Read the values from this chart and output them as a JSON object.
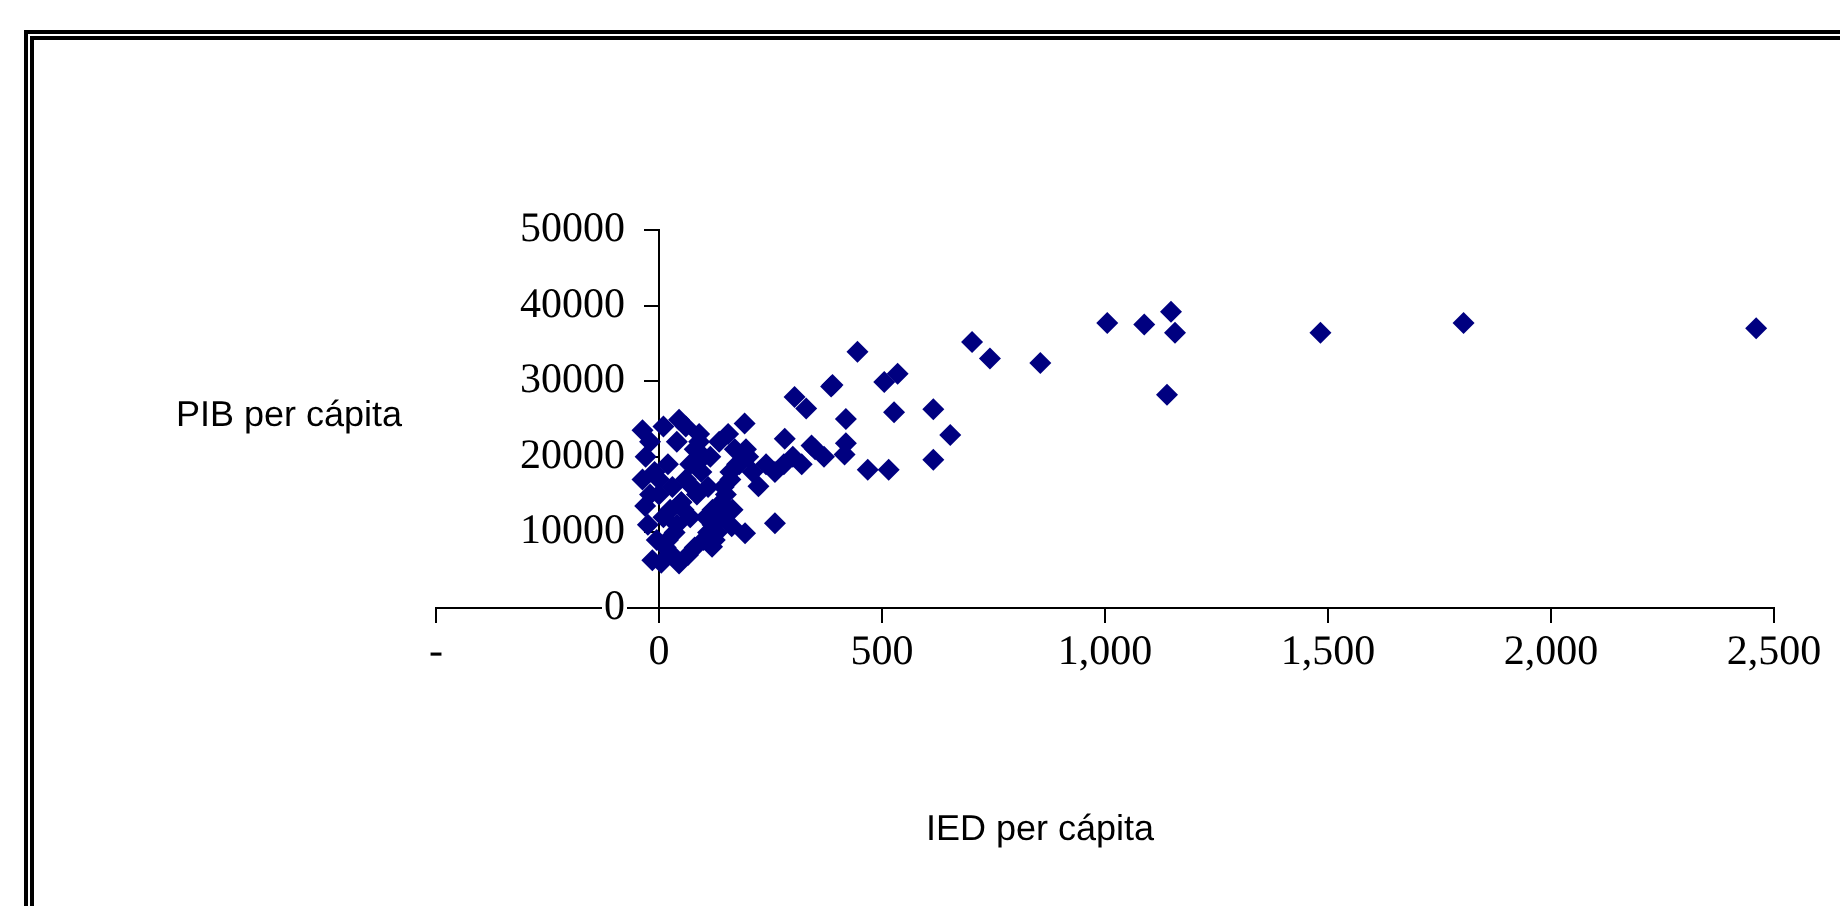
{
  "chart_data": {
    "type": "scatter",
    "xlabel": "IED per cápita",
    "ylabel": "PIB per cápita",
    "marker": "diamond",
    "legend": false,
    "grid": false,
    "xlim": [
      -500,
      2500
    ],
    "xticks": [
      {
        "value": -500,
        "label": "-"
      },
      0,
      500,
      {
        "value": 1000,
        "label": "1,000"
      },
      {
        "value": 1500,
        "label": "1,500"
      },
      {
        "value": 2000,
        "label": "2,000"
      },
      {
        "value": 2500,
        "label": "2,500"
      }
    ],
    "ylim": [
      0,
      50000
    ],
    "yticks": [
      0,
      10000,
      20000,
      30000,
      40000,
      50000
    ],
    "series": [
      {
        "color": "#000080",
        "x": [
          1005,
          1088,
          1148,
          1157,
          1139,
          1483,
          1804,
          2460,
          702,
          742,
          855,
          445,
          389,
          505,
          535,
          527,
          615,
          653,
          615,
          468,
          515,
          419,
          419,
          416,
          330,
          342,
          304,
          386,
          282,
          260,
          193,
          223,
          163,
          119,
          45,
          -15,
          -31,
          -37,
          192,
          45,
          -37,
          -30,
          -20,
          -10,
          0,
          10,
          20,
          30,
          40,
          50,
          60,
          70,
          80,
          90,
          100,
          110,
          120,
          130,
          140,
          150,
          160,
          170,
          180,
          -25,
          -5,
          15,
          35,
          55,
          75,
          95,
          115,
          135,
          155,
          175,
          195,
          -20,
          0,
          20,
          40,
          60,
          80,
          100,
          120,
          140,
          160,
          200,
          210,
          240,
          260,
          280,
          300,
          320,
          350,
          370,
          5,
          25,
          65,
          85,
          105,
          125,
          145,
          165,
          10,
          30,
          50,
          70,
          90,
          110
        ],
        "values": [
          37700,
          37500,
          39200,
          36400,
          28200,
          36400,
          37700,
          37000,
          35200,
          33000,
          32400,
          33900,
          29500,
          29900,
          31000,
          25900,
          26300,
          22900,
          19600,
          18300,
          18300,
          25000,
          21800,
          20300,
          26400,
          21500,
          27900,
          29300,
          22400,
          11200,
          9900,
          16100,
          10800,
          8100,
          5900,
          6300,
          13500,
          17000,
          24400,
          24900,
          23500,
          20000,
          22000,
          18000,
          15000,
          12000,
          9000,
          7000,
          11000,
          14000,
          17000,
          19000,
          21000,
          23000,
          20000,
          16000,
          13000,
          10000,
          12000,
          15000,
          18000,
          21000,
          19000,
          11000,
          9000,
          8000,
          10000,
          13000,
          16000,
          18000,
          20000,
          22000,
          23000,
          19000,
          21000,
          15000,
          17000,
          19000,
          22000,
          24000,
          8000,
          9000,
          11000,
          14000,
          17000,
          20000,
          18000,
          19000,
          18000,
          19000,
          20000,
          19000,
          21000,
          20000,
          6000,
          13000,
          7000,
          15000,
          12000,
          9000,
          16000,
          13000,
          24000,
          16000,
          14000,
          12000,
          22000,
          10000
        ]
      }
    ]
  }
}
